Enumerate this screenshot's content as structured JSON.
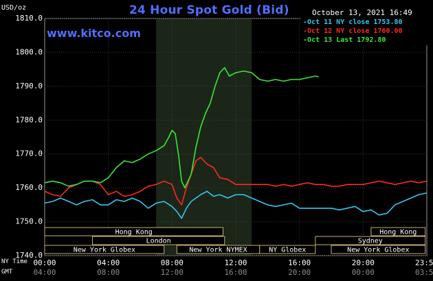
{
  "header": {
    "title": "24 Hour Spot Gold (Bid)",
    "units": "USD/oz",
    "datetime": "October 13, 2021 16:49",
    "watermark": "www.kitco.com"
  },
  "legend": [
    {
      "label": "Oct 11 NY close 1753.80",
      "color": "#35c7f0"
    },
    {
      "label": "Oct 12 NY close 1760.00",
      "color": "#ff2a1c"
    },
    {
      "label": "Oct 13 Last 1792.80",
      "color": "#38e838"
    }
  ],
  "time_rows": {
    "ny_label": "NY Time",
    "gmt_label": "GMT"
  },
  "sessions": [
    {
      "name": "Hong Kong",
      "row": 0,
      "start": 0,
      "end": 11.2
    },
    {
      "name": "Hong Kong",
      "row": 0,
      "start": 20.5,
      "end": 23.9
    },
    {
      "name": "London",
      "row": 1,
      "start": 3.0,
      "end": 11.3
    },
    {
      "name": "Sydney",
      "row": 1,
      "start": 17.0,
      "end": 23.9
    },
    {
      "name": "New York Globex",
      "row": 2,
      "start": 0,
      "end": 7.5
    },
    {
      "name": "New York NYMEX",
      "row": 2,
      "start": 8.3,
      "end": 13.5
    },
    {
      "name": "NY Globex",
      "row": 2,
      "start": 13.5,
      "end": 17.0
    },
    {
      "name": "New York Globex",
      "row": 2,
      "start": 18.0,
      "end": 23.9
    }
  ],
  "chart_data": {
    "type": "line",
    "title": "24 Hour Spot Gold (Bid)",
    "ylabel": "USD/oz",
    "ylim": [
      1740,
      1810
    ],
    "yticks": [
      "1740.0",
      "1750.0",
      "1760.0",
      "1770.0",
      "1780.0",
      "1790.0",
      "1800.0",
      "1810.0"
    ],
    "xlim": [
      0,
      24
    ],
    "xticks_ny": [
      "00:00",
      "04:00",
      "08:00",
      "12:00",
      "16:00",
      "20:00",
      "23:59"
    ],
    "xticks_gmt": [
      "04:00",
      "08:00",
      "12:00",
      "16:00",
      "20:00",
      "00:00",
      "03:59"
    ],
    "xtick_hours": [
      0,
      4,
      8,
      12,
      16,
      20,
      23.98
    ],
    "grid": true,
    "highlight_hours": [
      7.0,
      13.0
    ],
    "series": [
      {
        "name": "Oct 11 NY close 1753.80",
        "color": "#35c7f0",
        "x": [
          0,
          0.5,
          1,
          1.5,
          2,
          2.5,
          3,
          3.5,
          4,
          4.5,
          5,
          5.5,
          6,
          6.5,
          7,
          7.5,
          8,
          8.3,
          8.6,
          8.9,
          9.2,
          9.5,
          9.8,
          10.2,
          10.6,
          11,
          11.5,
          12,
          12.5,
          13,
          13.5,
          14,
          14.5,
          15,
          15.5,
          16,
          16.5,
          17,
          17.5,
          18,
          18.5,
          19,
          19.5,
          20,
          20.5,
          21,
          21.5,
          22,
          22.5,
          23,
          23.5,
          23.98
        ],
        "y": [
          1755.5,
          1756,
          1757,
          1756,
          1755,
          1756,
          1756.5,
          1755,
          1755,
          1756.5,
          1756,
          1757,
          1756,
          1754,
          1755.5,
          1756,
          1754.5,
          1753,
          1751,
          1754,
          1756,
          1757,
          1758,
          1759,
          1757.5,
          1758,
          1757,
          1758,
          1758,
          1757,
          1756,
          1755,
          1754.5,
          1755,
          1755.5,
          1754,
          1754,
          1754,
          1754,
          1754,
          1753.5,
          1754,
          1754.5,
          1753,
          1753.5,
          1752,
          1752.5,
          1755,
          1756,
          1757,
          1758,
          1758.5
        ]
      },
      {
        "name": "Oct 12 NY close 1760.00",
        "color": "#ff2a1c",
        "x": [
          0,
          0.5,
          1,
          1.5,
          2,
          2.5,
          3,
          3.5,
          4,
          4.5,
          5,
          5.5,
          6,
          6.5,
          7,
          7.5,
          8,
          8.3,
          8.6,
          8.9,
          9.2,
          9.5,
          9.8,
          10.2,
          10.6,
          11,
          11.5,
          12,
          12.5,
          13,
          13.5,
          14,
          14.5,
          15,
          15.5,
          16,
          16.5,
          17,
          17.5,
          18,
          18.5,
          19,
          19.5,
          20,
          20.5,
          21,
          21.5,
          22,
          22.5,
          23,
          23.5,
          23.98
        ],
        "y": [
          1759,
          1758,
          1757.5,
          1760,
          1761,
          1762,
          1762,
          1761,
          1758,
          1759,
          1757.5,
          1758,
          1759,
          1760.5,
          1761,
          1762,
          1761,
          1757,
          1755,
          1760,
          1764,
          1768,
          1769,
          1767,
          1766,
          1763,
          1762.5,
          1761,
          1761,
          1761,
          1761,
          1761,
          1760.5,
          1761,
          1760.5,
          1761,
          1761.5,
          1761,
          1761,
          1760.5,
          1760.5,
          1761,
          1761,
          1761,
          1761.5,
          1762,
          1761.5,
          1761,
          1761.5,
          1762,
          1761.5,
          1762
        ]
      },
      {
        "name": "Oct 13 Last 1792.80",
        "color": "#38e838",
        "x": [
          0,
          0.5,
          1,
          1.5,
          2,
          2.5,
          3,
          3.5,
          4,
          4.5,
          5,
          5.5,
          6,
          6.5,
          7,
          7.5,
          7.8,
          8,
          8.2,
          8.4,
          8.6,
          8.8,
          9.0,
          9.2,
          9.5,
          9.8,
          10.1,
          10.4,
          10.7,
          11,
          11.3,
          11.6,
          12,
          12.5,
          13,
          13.5,
          14,
          14.5,
          15,
          15.5,
          16,
          16.5,
          17,
          17.2
        ],
        "y": [
          1761.5,
          1762,
          1761.5,
          1760.5,
          1761,
          1762,
          1762,
          1761.5,
          1763,
          1766,
          1768,
          1767.5,
          1768.5,
          1770,
          1771,
          1772.5,
          1775,
          1777,
          1776,
          1770,
          1762,
          1760,
          1762,
          1764,
          1772,
          1778,
          1782,
          1785,
          1790,
          1794,
          1795.5,
          1793,
          1794,
          1794.5,
          1794,
          1792,
          1791.5,
          1792,
          1791.5,
          1792,
          1792,
          1792.5,
          1793,
          1792.8
        ]
      }
    ]
  }
}
